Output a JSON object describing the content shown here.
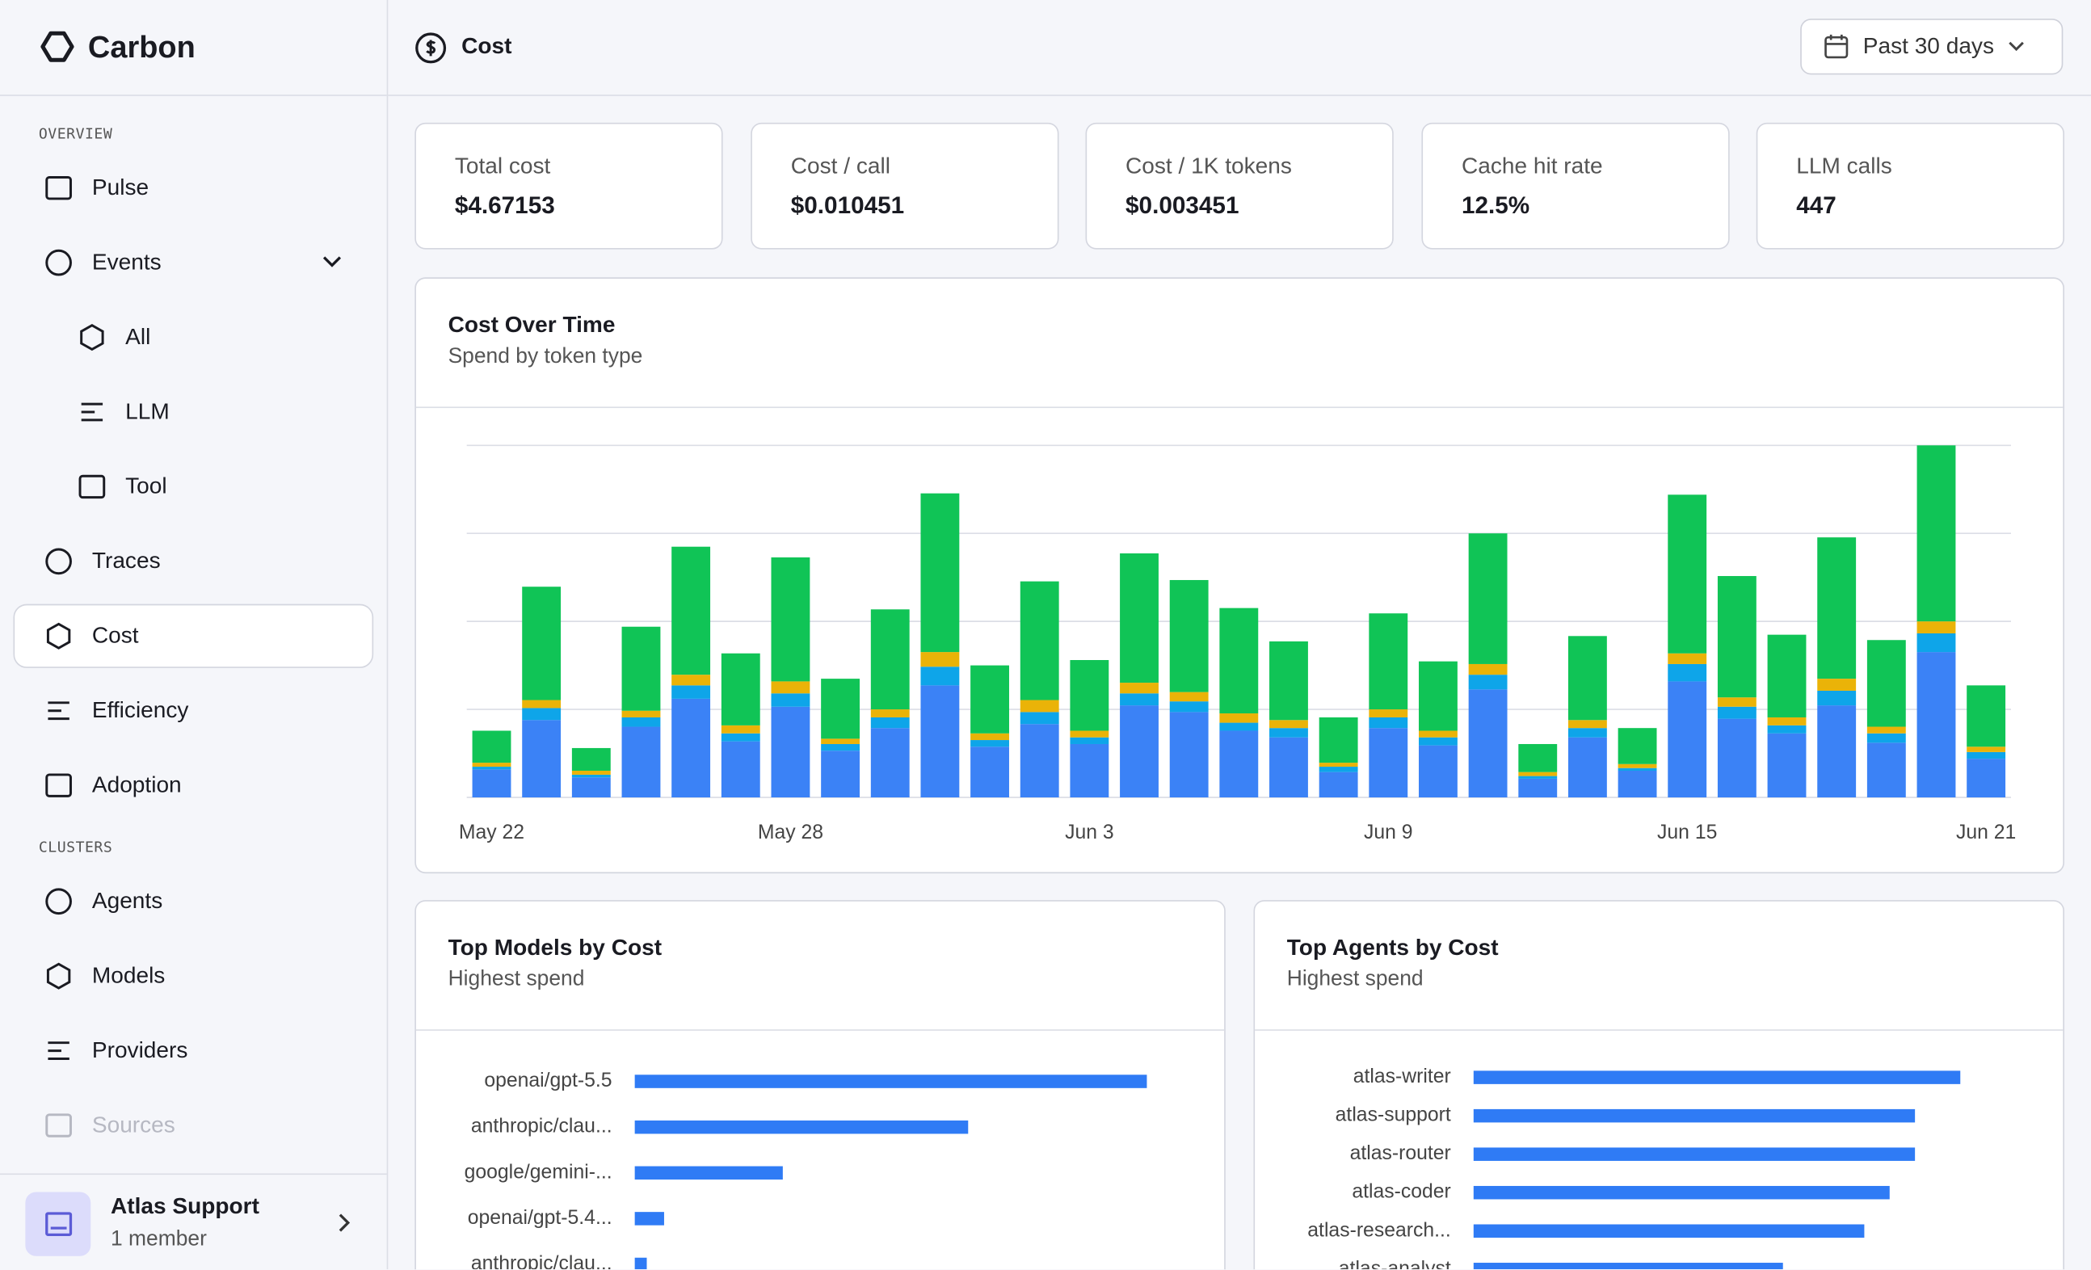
{
  "sidebar": {
    "brand": "Carbon",
    "sections": [
      {
        "label": "OVERVIEW",
        "items": [
          {
            "label": "Pulse"
          },
          {
            "label": "Events",
            "expanded": true
          },
          {
            "label": "All",
            "sub": true
          },
          {
            "label": "LLM",
            "sub": true
          },
          {
            "label": "Tool",
            "sub": true
          },
          {
            "label": "Traces"
          },
          {
            "label": "Cost",
            "selected": true
          },
          {
            "label": "Efficiency"
          },
          {
            "label": "Adoption"
          }
        ]
      },
      {
        "label": "CLUSTERS",
        "items": [
          {
            "label": "Agents"
          },
          {
            "label": "Models"
          },
          {
            "label": "Providers"
          },
          {
            "label": "Sources",
            "disabled": true
          }
        ]
      }
    ],
    "workspace": {
      "name": "Atlas Support",
      "members": "1 member"
    }
  },
  "header": {
    "title": "Cost",
    "date_range": "Past 30 days"
  },
  "kpis": [
    {
      "label": "Total cost",
      "value": "$4.67153"
    },
    {
      "label": "Cost / call",
      "value": "$0.010451"
    },
    {
      "label": "Cost / 1K tokens",
      "value": "$0.003451"
    },
    {
      "label": "Cache hit rate",
      "value": "12.5%"
    },
    {
      "label": "LLM calls",
      "value": "447"
    }
  ],
  "chart_data": [
    {
      "type": "stacked_bar",
      "title": "Cost Over Time",
      "subtitle": "Spend by token type",
      "categories": [
        "May 22",
        null,
        null,
        null,
        null,
        null,
        "May 28",
        null,
        null,
        null,
        null,
        null,
        "Jun 3",
        null,
        null,
        null,
        null,
        null,
        "Jun 9",
        null,
        null,
        null,
        null,
        null,
        "Jun 15",
        null,
        null,
        null,
        null,
        null,
        "Jun 21"
      ],
      "series": [
        {
          "color": "#3b82f6",
          "values": [
            21,
            58,
            15,
            53,
            74,
            42,
            68,
            35,
            52,
            84,
            38,
            55,
            40,
            69,
            64,
            50,
            45,
            19,
            52,
            39,
            81,
            14,
            45,
            20,
            87,
            59,
            48,
            69,
            41,
            109,
            29
          ]
        },
        {
          "color": "#0ea5e9",
          "values": [
            2,
            9,
            2,
            7,
            10,
            6,
            10,
            5,
            8,
            14,
            5,
            9,
            5,
            9,
            8,
            6,
            7,
            4,
            8,
            6,
            11,
            2,
            7,
            2,
            13,
            9,
            6,
            11,
            7,
            14,
            5
          ]
        },
        {
          "color": "#eab308",
          "values": [
            3,
            6,
            3,
            5,
            8,
            6,
            9,
            4,
            6,
            11,
            5,
            9,
            5,
            8,
            7,
            7,
            6,
            3,
            6,
            5,
            8,
            3,
            6,
            3,
            8,
            7,
            6,
            9,
            5,
            9,
            4
          ]
        },
        {
          "color": "#10c456",
          "values": [
            24,
            85,
            17,
            63,
            96,
            54,
            93,
            45,
            75,
            119,
            51,
            89,
            53,
            97,
            84,
            79,
            59,
            34,
            72,
            52,
            98,
            21,
            63,
            27,
            119,
            91,
            62,
            106,
            65,
            132,
            46
          ]
        }
      ],
      "ylim": [
        0,
        264
      ],
      "gridlines": [
        0,
        66,
        132,
        198,
        264
      ]
    },
    {
      "type": "hbar",
      "title": "Top Models by Cost",
      "subtitle": "Highest spend",
      "categories": [
        "openai/gpt-5.5",
        "anthropic/clau...",
        "google/gemini-...",
        "openai/gpt-5.4...",
        "anthropic/clau..."
      ],
      "values": [
        384,
        250,
        111,
        22,
        9
      ],
      "color": "#2f7bf5",
      "xlim": [
        0,
        400
      ]
    },
    {
      "type": "hbar",
      "title": "Top Agents by Cost",
      "subtitle": "Highest spend",
      "categories": [
        "atlas-writer",
        "atlas-support",
        "atlas-router",
        "atlas-coder",
        "atlas-research...",
        "atlas-analyst"
      ],
      "values": [
        365,
        331,
        331,
        312,
        293,
        232
      ],
      "color": "#2f7bf5",
      "xlim": [
        0,
        400
      ]
    }
  ]
}
